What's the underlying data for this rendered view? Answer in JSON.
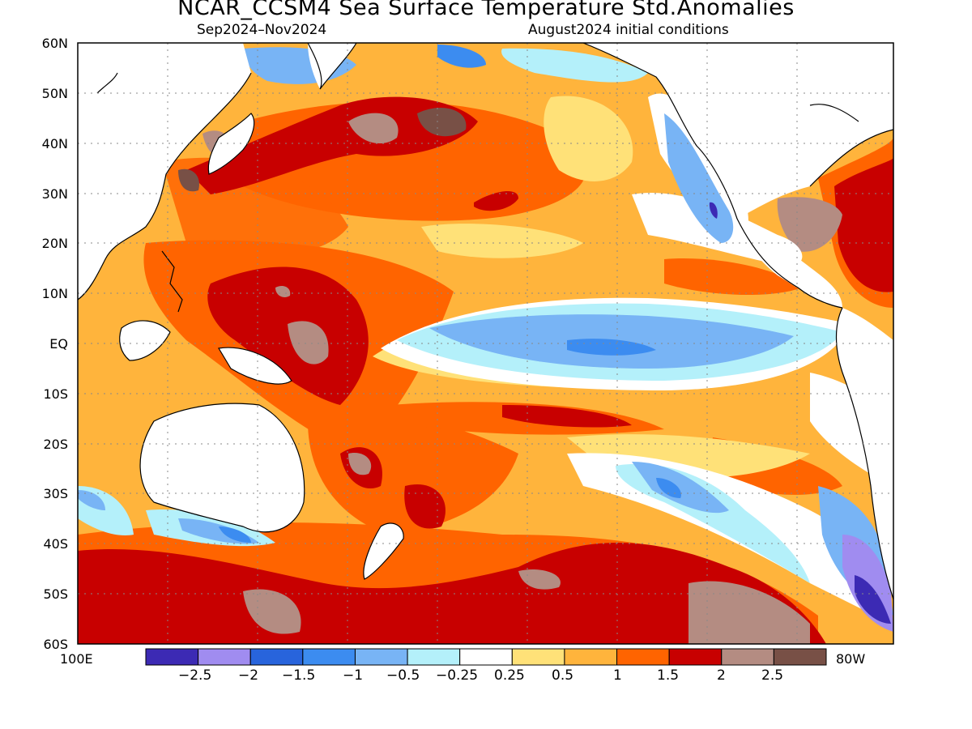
{
  "title": "NCAR_CCSM4 Sea Surface Temperature Std.Anomalies",
  "subtitle_left": "Sep2024–Nov2024",
  "subtitle_right": "August2024 initial conditions",
  "lat_labels": [
    "60N",
    "50N",
    "40N",
    "30N",
    "20N",
    "10N",
    "EQ",
    "10S",
    "20S",
    "30S",
    "40S",
    "50S",
    "60S"
  ],
  "lon_labels": {
    "left": "100E",
    "right": "80W"
  },
  "colorbar": {
    "colors": [
      "#3c2ab4",
      "#a08cf0",
      "#2864dc",
      "#3c8cf0",
      "#78b4f5",
      "#b4f0fa",
      "#ffffff",
      "#ffe178",
      "#ffb43c",
      "#ff6400",
      "#c80000",
      "#b48c82",
      "#785046"
    ],
    "labels": [
      "−2.5",
      "−2",
      "−1.5",
      "−1",
      "−0.5",
      "−0.25",
      "0.25",
      "0.5",
      "1",
      "1.5",
      "2",
      "2.5"
    ]
  },
  "land_color": "#ffffff",
  "map_background": "#ffb43c"
}
